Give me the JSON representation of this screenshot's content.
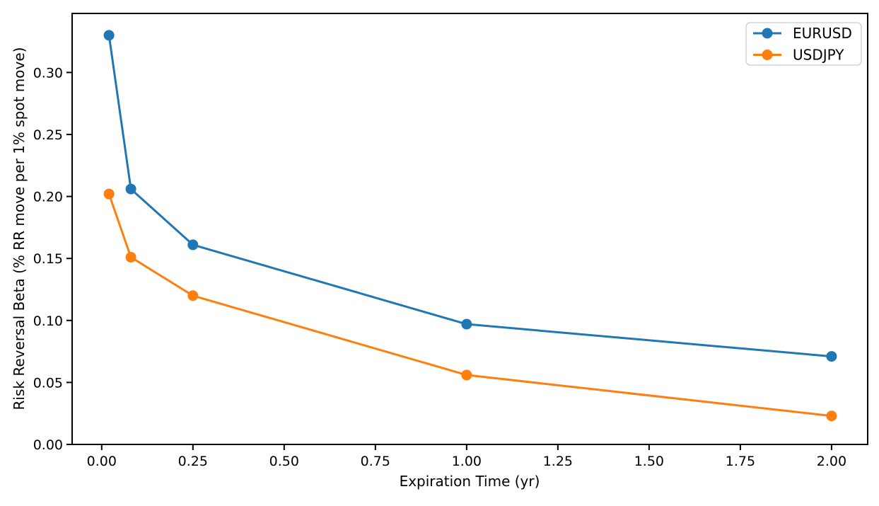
{
  "chart_data": {
    "type": "line",
    "title": "",
    "xlabel": "Expiration Time (yr)",
    "ylabel": "Risk Reversal Beta (% RR move per 1% spot move)",
    "x": [
      0.02,
      0.08,
      0.25,
      1.0,
      2.0
    ],
    "series": [
      {
        "name": "EURUSD",
        "color": "#1f77b4",
        "values": [
          0.33,
          0.206,
          0.161,
          0.097,
          0.071
        ]
      },
      {
        "name": "USDJPY",
        "color": "#ff7f0e",
        "values": [
          0.202,
          0.151,
          0.12,
          0.056,
          0.023
        ]
      }
    ],
    "xticks": [
      0,
      0.25,
      0.5,
      0.75,
      1,
      1.25,
      1.5,
      1.75,
      2
    ],
    "xtick_labels": [
      "0.00",
      "0.25",
      "0.50",
      "0.75",
      "1.00",
      "1.25",
      "1.50",
      "1.75",
      "2.00"
    ],
    "yticks": [
      0,
      0.05,
      0.1,
      0.15,
      0.2,
      0.25,
      0.3
    ],
    "ytick_labels": [
      "0.00",
      "0.05",
      "0.10",
      "0.15",
      "0.20",
      "0.25",
      "0.30"
    ],
    "xlim": [
      -0.081,
      2.099
    ],
    "ylim": [
      0,
      0.3476
    ],
    "grid": false,
    "marker": "circle",
    "legend": {
      "position": "upper right",
      "entries": [
        "EURUSD",
        "USDJPY"
      ],
      "border_color": "#cccccc",
      "background_color": "#ffffff"
    },
    "spine_color": "#000000"
  }
}
